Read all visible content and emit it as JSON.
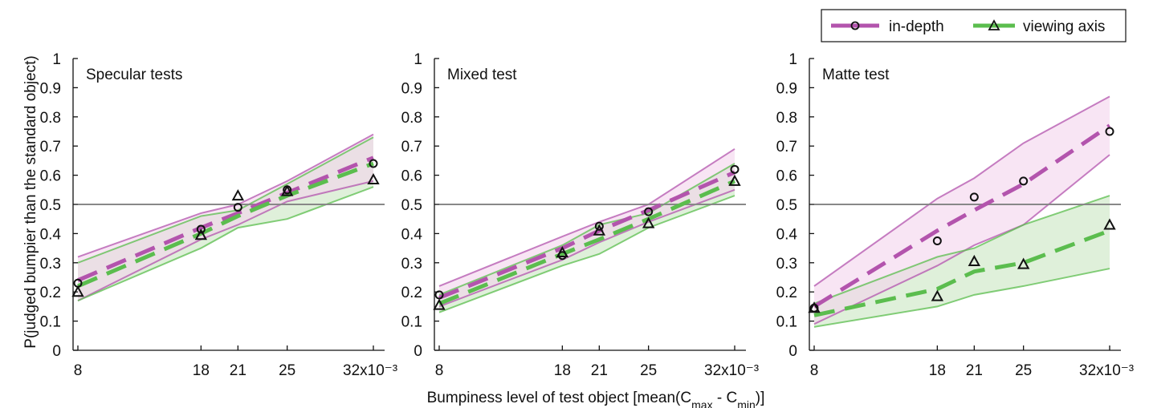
{
  "figure": {
    "ylabel": "P(judged bumpier than the standard object)",
    "xlabel_main": "Bumpiness level of test object [mean(C",
    "xlabel_sub1": "max",
    "xlabel_mid": " - C",
    "xlabel_sub2": "min",
    "xlabel_end": ")]"
  },
  "legend": {
    "items": [
      {
        "label": "in-depth",
        "color": "#b354ad",
        "marker": "circle"
      },
      {
        "label": "viewing axis",
        "color": "#5bbd4e",
        "marker": "triangle"
      }
    ]
  },
  "colors": {
    "in_depth": "#b354ad",
    "in_depth_band": "#f3d3ec",
    "viewing_axis": "#5bbd4e",
    "viewing_axis_band": "#d9edd3",
    "overlap_band": "#e3e3dd",
    "reference_line": "#888888"
  },
  "chart_data": [
    {
      "type": "line",
      "title": "Specular tests",
      "x": [
        8,
        18,
        21,
        25,
        32
      ],
      "x_tick_labels": [
        "8",
        "18",
        "21",
        "25",
        "32x10⁻³"
      ],
      "y_ticks": [
        "0",
        "0.1",
        "0.2",
        "0.3",
        "0.4",
        "0.5",
        "0.6",
        "0.7",
        "0.8",
        "0.9",
        "1"
      ],
      "xlim": [
        8,
        32
      ],
      "ylim": [
        0,
        1
      ],
      "reference_y": 0.5,
      "series": [
        {
          "name": "in-depth",
          "points": [
            0.23,
            0.415,
            0.49,
            0.55,
            0.64
          ],
          "fit": [
            0.24,
            0.42,
            0.47,
            0.54,
            0.66
          ],
          "upper": [
            0.32,
            0.47,
            0.5,
            0.58,
            0.74
          ],
          "lower": [
            0.17,
            0.38,
            0.43,
            0.51,
            0.58
          ]
        },
        {
          "name": "viewing axis",
          "points": [
            0.2,
            0.395,
            0.53,
            0.545,
            0.585
          ],
          "fit": [
            0.22,
            0.4,
            0.46,
            0.53,
            0.64
          ],
          "upper": [
            0.3,
            0.46,
            0.48,
            0.57,
            0.73
          ],
          "lower": [
            0.17,
            0.35,
            0.42,
            0.45,
            0.56
          ]
        }
      ]
    },
    {
      "type": "line",
      "title": "Mixed test",
      "x": [
        8,
        18,
        21,
        25,
        32
      ],
      "x_tick_labels": [
        "8",
        "18",
        "21",
        "25",
        "32x10⁻³"
      ],
      "y_ticks": [
        "0",
        "0.1",
        "0.2",
        "0.3",
        "0.4",
        "0.5",
        "0.6",
        "0.7",
        "0.8",
        "0.9",
        "1"
      ],
      "xlim": [
        8,
        32
      ],
      "ylim": [
        0,
        1
      ],
      "reference_y": 0.5,
      "series": [
        {
          "name": "in-depth",
          "points": [
            0.19,
            0.325,
            0.425,
            0.475,
            0.62
          ],
          "fit": [
            0.18,
            0.35,
            0.41,
            0.48,
            0.61
          ],
          "upper": [
            0.22,
            0.39,
            0.44,
            0.5,
            0.69
          ],
          "lower": [
            0.15,
            0.31,
            0.37,
            0.44,
            0.55
          ]
        },
        {
          "name": "viewing axis",
          "points": [
            0.155,
            0.335,
            0.41,
            0.435,
            0.58
          ],
          "fit": [
            0.16,
            0.33,
            0.38,
            0.45,
            0.58
          ],
          "upper": [
            0.19,
            0.36,
            0.43,
            0.47,
            0.64
          ],
          "lower": [
            0.13,
            0.29,
            0.33,
            0.42,
            0.53
          ]
        }
      ]
    },
    {
      "type": "line",
      "title": "Matte test",
      "x": [
        8,
        18,
        21,
        25,
        32
      ],
      "x_tick_labels": [
        "8",
        "18",
        "21",
        "25",
        "32x10⁻³"
      ],
      "y_ticks": [
        "0",
        "0.1",
        "0.2",
        "0.3",
        "0.4",
        "0.5",
        "0.6",
        "0.7",
        "0.8",
        "0.9",
        "1"
      ],
      "xlim": [
        8,
        32
      ],
      "ylim": [
        0,
        1
      ],
      "reference_y": 0.5,
      "series": [
        {
          "name": "in-depth",
          "points": [
            0.145,
            0.375,
            0.525,
            0.58,
            0.75
          ],
          "fit": [
            0.15,
            0.41,
            0.48,
            0.57,
            0.77
          ],
          "upper": [
            0.22,
            0.52,
            0.59,
            0.71,
            0.87
          ],
          "lower": [
            0.09,
            0.29,
            0.36,
            0.43,
            0.67
          ]
        },
        {
          "name": "viewing axis",
          "points": [
            0.145,
            0.185,
            0.305,
            0.295,
            0.43
          ],
          "fit": [
            0.12,
            0.21,
            0.27,
            0.3,
            0.41
          ],
          "upper": [
            0.16,
            0.32,
            0.35,
            0.43,
            0.53
          ],
          "lower": [
            0.08,
            0.15,
            0.19,
            0.22,
            0.28
          ]
        }
      ]
    }
  ]
}
